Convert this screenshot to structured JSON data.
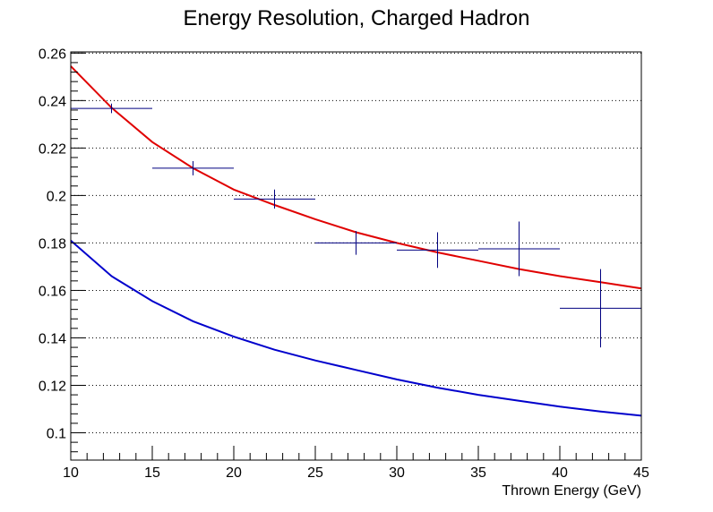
{
  "chart_data": {
    "type": "scatter",
    "title": "Energy Resolution, Charged Hadron",
    "xlabel": "Thrown Energy (GeV)",
    "ylabel": "",
    "xlim": [
      10,
      45
    ],
    "ylim": [
      0.0885,
      0.2605
    ],
    "x_ticks": [
      10,
      15,
      20,
      25,
      30,
      35,
      40,
      45
    ],
    "x_tick_labels": [
      "10",
      "15",
      "20",
      "25",
      "30",
      "35",
      "40",
      "45"
    ],
    "y_ticks": [
      0.1,
      0.12,
      0.14,
      0.16,
      0.18,
      0.2,
      0.22,
      0.24,
      0.26
    ],
    "y_tick_labels": [
      "0.1",
      "0.12",
      "0.14",
      "0.16",
      "0.18",
      "0.2",
      "0.22",
      "0.24",
      "0.26"
    ],
    "grid": true,
    "colors": {
      "points": "#000080",
      "fit": "#e00000",
      "reference": "#0000cc"
    },
    "points": [
      {
        "x": 12.5,
        "y": 0.2367,
        "xerr": 2.5,
        "yerr": 0.002
      },
      {
        "x": 17.5,
        "y": 0.2115,
        "xerr": 2.5,
        "yerr": 0.003
      },
      {
        "x": 22.5,
        "y": 0.1985,
        "xerr": 2.5,
        "yerr": 0.004
      },
      {
        "x": 27.5,
        "y": 0.18,
        "xerr": 2.5,
        "yerr": 0.005
      },
      {
        "x": 32.5,
        "y": 0.177,
        "xerr": 2.5,
        "yerr": 0.0075
      },
      {
        "x": 37.5,
        "y": 0.1775,
        "xerr": 2.5,
        "yerr": 0.0115
      },
      {
        "x": 42.5,
        "y": 0.1525,
        "xerr": 2.5,
        "yerr": 0.0165
      }
    ],
    "curves": [
      {
        "name": "",
        "color": "#e00000",
        "x": [
          10,
          12.5,
          15,
          17.5,
          20,
          22.5,
          25,
          27.5,
          30,
          32.5,
          35,
          37.5,
          40,
          42.5,
          45
        ],
        "y": [
          0.2545,
          0.237,
          0.2225,
          0.2115,
          0.2025,
          0.196,
          0.19,
          0.1845,
          0.18,
          0.176,
          0.1725,
          0.169,
          0.166,
          0.1635,
          0.1608
        ]
      },
      {
        "name": "",
        "color": "#0000cc",
        "x": [
          10,
          12.5,
          15,
          17.5,
          20,
          22.5,
          25,
          27.5,
          30,
          32.5,
          35,
          37.5,
          40,
          42.5,
          45
        ],
        "y": [
          0.181,
          0.166,
          0.1555,
          0.147,
          0.1405,
          0.135,
          0.1305,
          0.1265,
          0.1225,
          0.119,
          0.116,
          0.1135,
          0.111,
          0.109,
          0.1072
        ]
      }
    ]
  }
}
